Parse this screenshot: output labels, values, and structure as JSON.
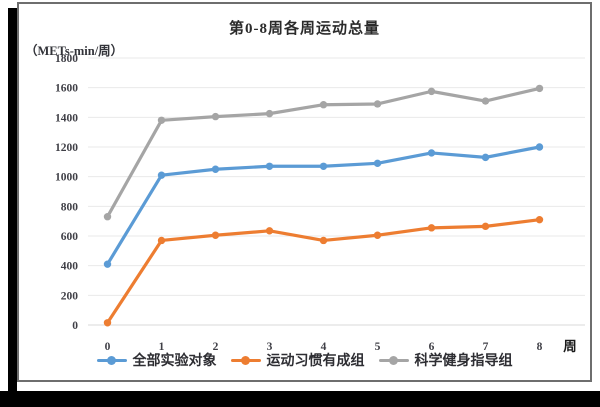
{
  "window": {
    "border_color": "#000000",
    "frame_border_color": "#6e6e6e"
  },
  "chart_data": {
    "type": "line",
    "title": "第0-8周各周运动总量",
    "ylabel": "（METs-min/周）",
    "xlabel": "周",
    "x": [
      0,
      1,
      2,
      3,
      4,
      5,
      6,
      7,
      8
    ],
    "ylim": [
      0,
      1800
    ],
    "ytick_step": 200,
    "grid": true,
    "legend_position": "bottom",
    "colors": {
      "gridline": "#e9e9e9",
      "baseline": "#d9d9d9",
      "axis_text": "#3f3f46"
    },
    "series": [
      {
        "name": "全部实验对象",
        "color": "#5B9BD5",
        "values": [
          410,
          1010,
          1050,
          1070,
          1070,
          1090,
          1160,
          1130,
          1200
        ]
      },
      {
        "name": "运动习惯有成组",
        "color": "#ED7D31",
        "values": [
          15,
          570,
          605,
          635,
          570,
          605,
          655,
          665,
          710
        ]
      },
      {
        "name": "科学健身指导组",
        "color": "#A5A5A5",
        "values": [
          730,
          1380,
          1405,
          1425,
          1485,
          1490,
          1575,
          1510,
          1595
        ]
      }
    ]
  }
}
